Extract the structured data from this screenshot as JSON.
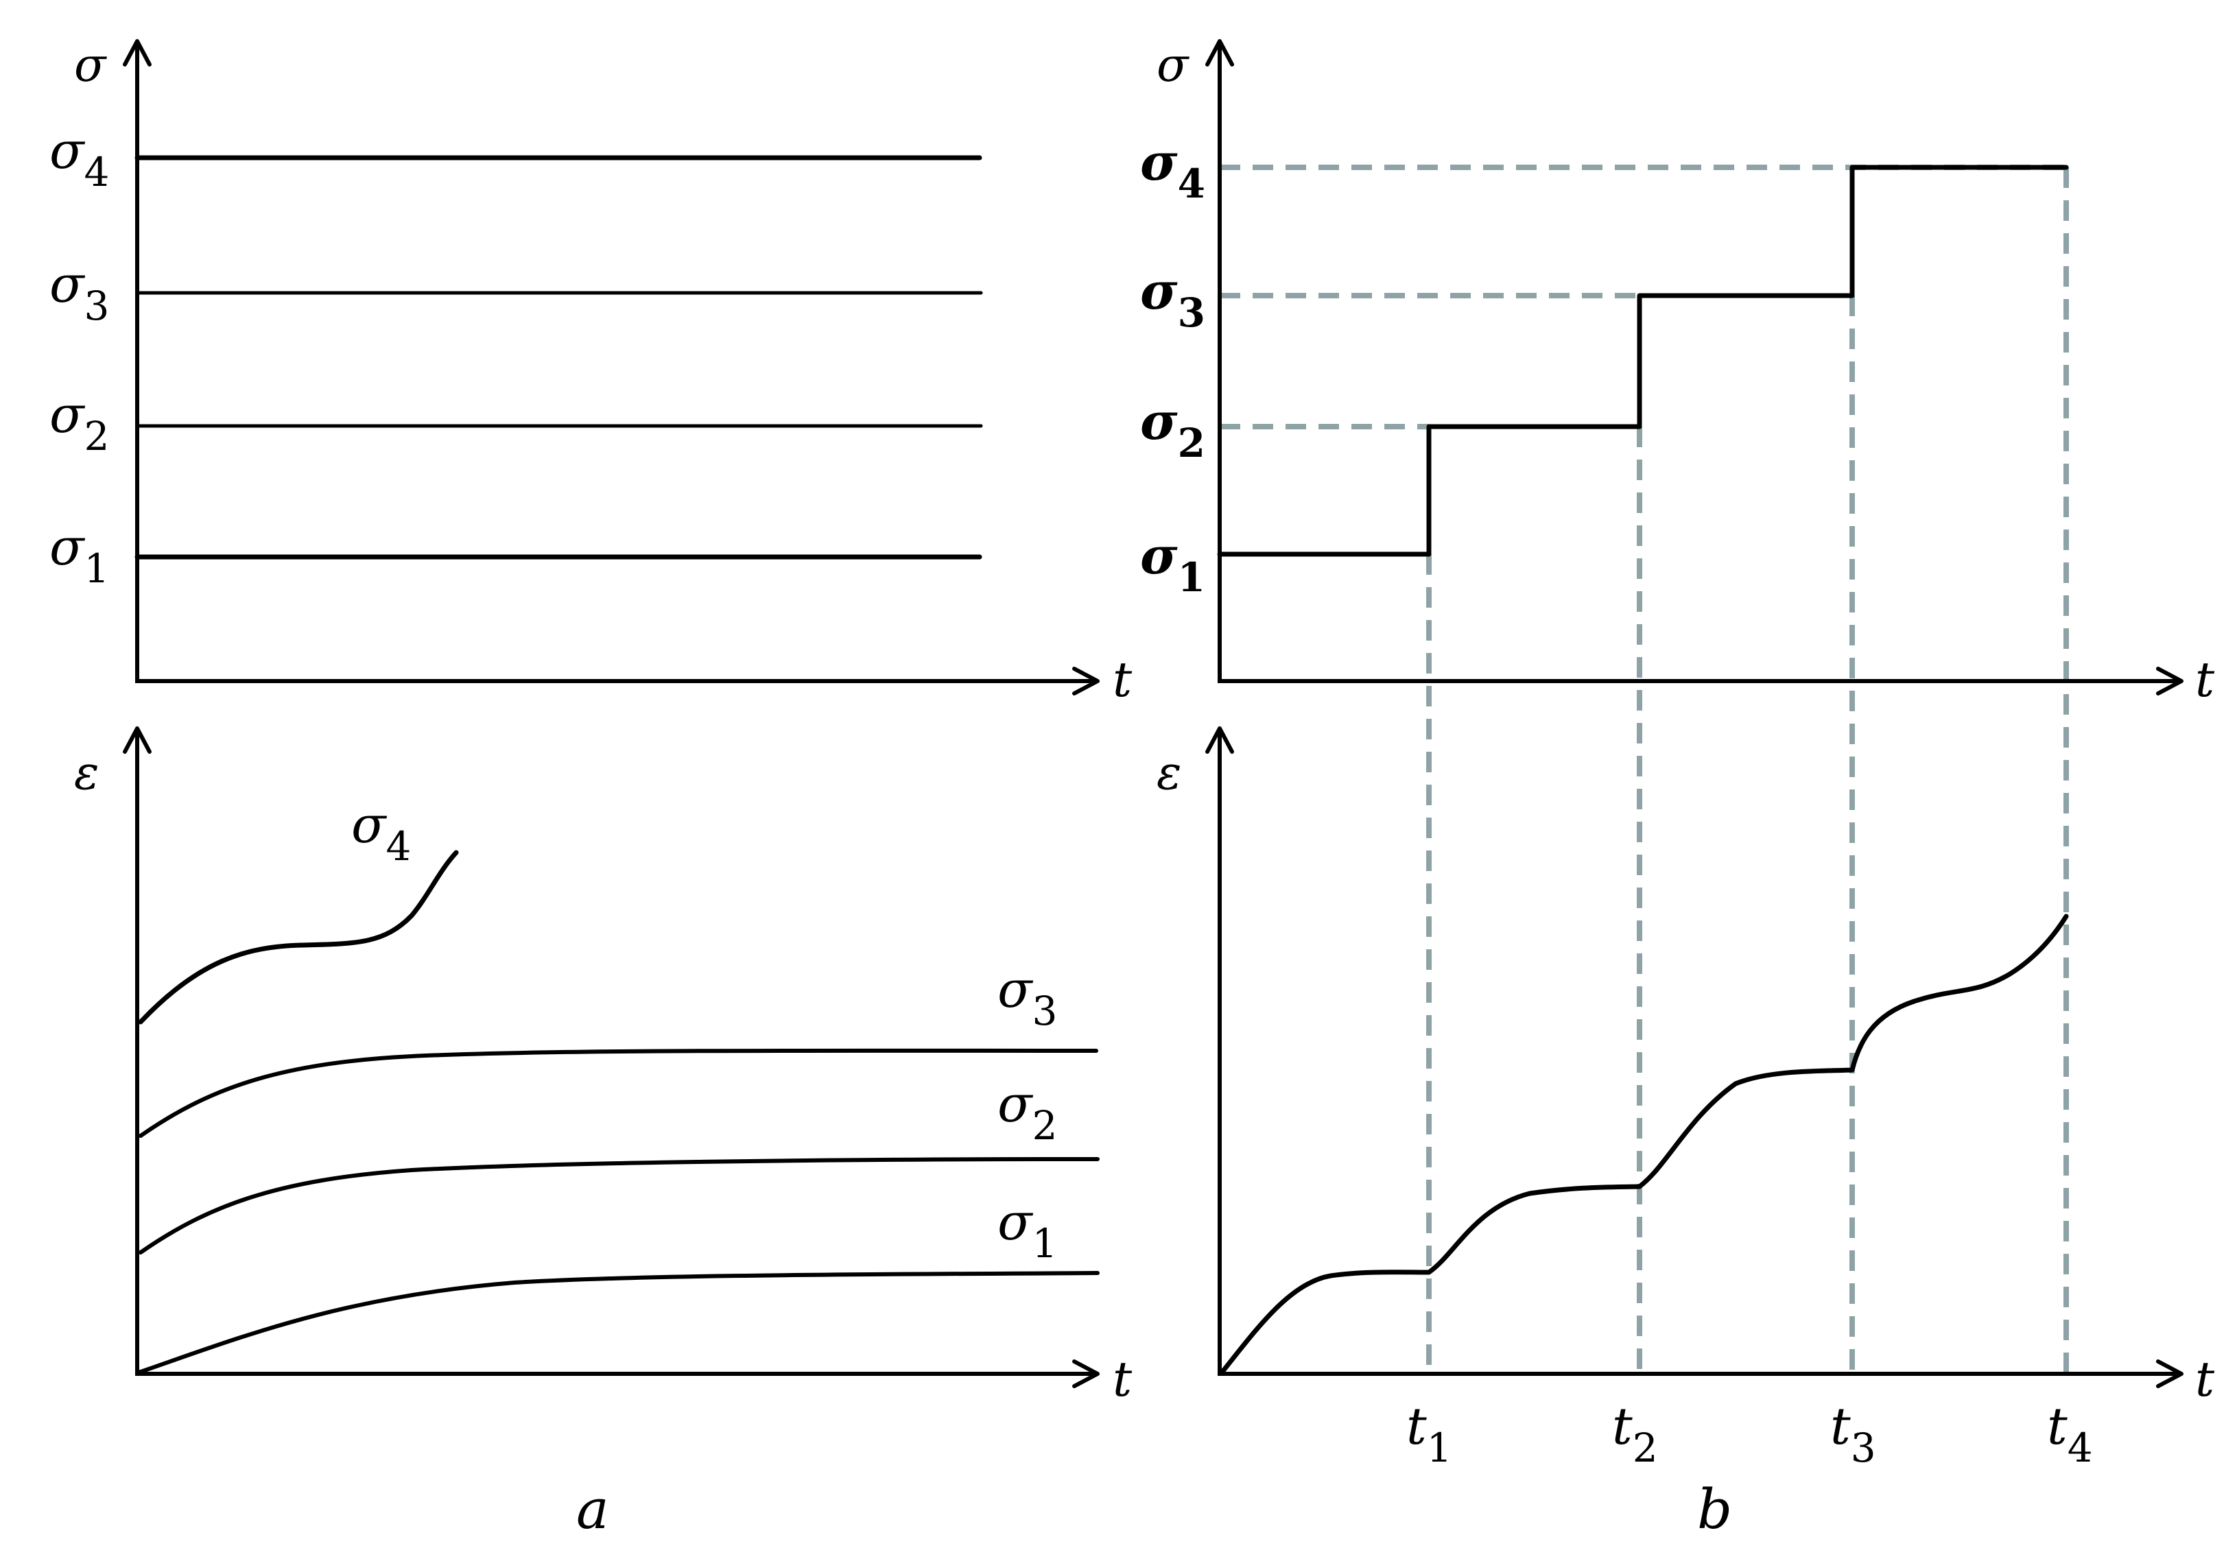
{
  "colors": {
    "line": "#000000",
    "guide": "#8fa3a6",
    "background": "#ffffff"
  },
  "panel_a": {
    "caption": "a",
    "top_y_axis": "σ",
    "top_x_axis": "t",
    "levels": [
      {
        "base": "σ",
        "sub": "4"
      },
      {
        "base": "σ",
        "sub": "3"
      },
      {
        "base": "σ",
        "sub": "2"
      },
      {
        "base": "σ",
        "sub": "1"
      }
    ],
    "bottom_y_axis": "ε",
    "bottom_x_axis": "t",
    "curve_labels": [
      {
        "base": "σ",
        "sub": "4"
      },
      {
        "base": "σ",
        "sub": "3"
      },
      {
        "base": "σ",
        "sub": "2"
      },
      {
        "base": "σ",
        "sub": "1"
      }
    ]
  },
  "panel_b": {
    "caption": "b",
    "top_y_axis": "σ",
    "top_x_axis": "t",
    "levels": [
      {
        "base": "σ",
        "sub": "4"
      },
      {
        "base": "σ",
        "sub": "3"
      },
      {
        "base": "σ",
        "sub": "2"
      },
      {
        "base": "σ",
        "sub": "1"
      }
    ],
    "bottom_y_axis": "ε",
    "bottom_x_axis": "t",
    "time_ticks": [
      {
        "base": "t",
        "sub": "1"
      },
      {
        "base": "t",
        "sub": "2"
      },
      {
        "base": "t",
        "sub": "3"
      },
      {
        "base": "t",
        "sub": "4"
      }
    ]
  }
}
